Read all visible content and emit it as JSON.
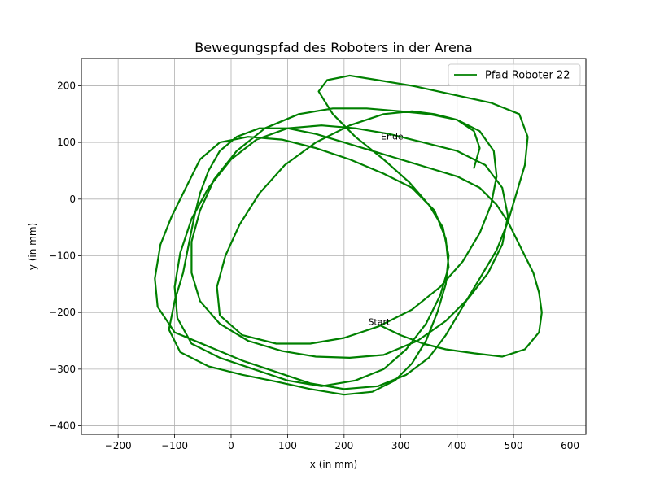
{
  "chart_data": {
    "type": "line",
    "title": "Bewegungspfad des Roboters in der Arena",
    "xlabel": "x (in mm)",
    "ylabel": "y (in mm)",
    "xlim": [
      -265,
      628
    ],
    "ylim": [
      -415,
      248
    ],
    "xticks": [
      -200,
      -100,
      0,
      100,
      200,
      300,
      400,
      500,
      600
    ],
    "yticks": [
      -400,
      -300,
      -200,
      -100,
      0,
      100,
      200
    ],
    "grid": true,
    "legend_position": "top-right",
    "series": [
      {
        "name": "Pfad Roboter 22",
        "color": "#008000",
        "points": [
          [
            262,
            -222
          ],
          [
            300,
            -240
          ],
          [
            340,
            -255
          ],
          [
            380,
            -265
          ],
          [
            430,
            -272
          ],
          [
            480,
            -278
          ],
          [
            520,
            -265
          ],
          [
            545,
            -235
          ],
          [
            550,
            -200
          ],
          [
            545,
            -165
          ],
          [
            535,
            -130
          ],
          [
            520,
            -100
          ],
          [
            505,
            -70
          ],
          [
            490,
            -40
          ],
          [
            470,
            -10
          ],
          [
            440,
            20
          ],
          [
            400,
            40
          ],
          [
            350,
            55
          ],
          [
            300,
            70
          ],
          [
            250,
            85
          ],
          [
            200,
            100
          ],
          [
            150,
            115
          ],
          [
            100,
            125
          ],
          [
            50,
            125
          ],
          [
            10,
            110
          ],
          [
            -20,
            85
          ],
          [
            -40,
            50
          ],
          [
            -55,
            10
          ],
          [
            -65,
            -30
          ],
          [
            -75,
            -80
          ],
          [
            -85,
            -130
          ],
          [
            -100,
            -180
          ],
          [
            -110,
            -230
          ],
          [
            -90,
            -270
          ],
          [
            -40,
            -295
          ],
          [
            20,
            -310
          ],
          [
            80,
            -322
          ],
          [
            140,
            -335
          ],
          [
            200,
            -345
          ],
          [
            250,
            -340
          ],
          [
            290,
            -320
          ],
          [
            320,
            -290
          ],
          [
            345,
            -250
          ],
          [
            365,
            -200
          ],
          [
            380,
            -150
          ],
          [
            385,
            -100
          ],
          [
            375,
            -50
          ],
          [
            350,
            -10
          ],
          [
            315,
            30
          ],
          [
            270,
            70
          ],
          [
            220,
            110
          ],
          [
            180,
            150
          ],
          [
            155,
            190
          ],
          [
            170,
            210
          ],
          [
            210,
            218
          ],
          [
            260,
            210
          ],
          [
            320,
            200
          ],
          [
            390,
            185
          ],
          [
            460,
            170
          ],
          [
            510,
            150
          ],
          [
            525,
            110
          ],
          [
            520,
            60
          ],
          [
            505,
            10
          ],
          [
            490,
            -40
          ],
          [
            470,
            -90
          ],
          [
            440,
            -140
          ],
          [
            410,
            -190
          ],
          [
            380,
            -240
          ],
          [
            350,
            -280
          ],
          [
            310,
            -310
          ],
          [
            260,
            -330
          ],
          [
            200,
            -335
          ],
          [
            140,
            -325
          ],
          [
            80,
            -305
          ],
          [
            20,
            -285
          ],
          [
            -40,
            -260
          ],
          [
            -100,
            -235
          ],
          [
            -130,
            -190
          ],
          [
            -135,
            -140
          ],
          [
            -125,
            -80
          ],
          [
            -105,
            -30
          ],
          [
            -80,
            20
          ],
          [
            -55,
            70
          ],
          [
            -20,
            100
          ],
          [
            30,
            110
          ],
          [
            90,
            105
          ],
          [
            150,
            90
          ],
          [
            210,
            70
          ],
          [
            270,
            45
          ],
          [
            320,
            20
          ],
          [
            360,
            -20
          ],
          [
            380,
            -70
          ],
          [
            385,
            -120
          ],
          [
            370,
            -170
          ],
          [
            345,
            -220
          ],
          [
            310,
            -265
          ],
          [
            270,
            -300
          ],
          [
            220,
            -320
          ],
          [
            160,
            -330
          ],
          [
            100,
            -320
          ],
          [
            40,
            -300
          ],
          [
            -20,
            -280
          ],
          [
            -70,
            -255
          ],
          [
            -95,
            -210
          ],
          [
            -100,
            -155
          ],
          [
            -90,
            -95
          ],
          [
            -70,
            -35
          ],
          [
            -40,
            20
          ],
          [
            0,
            70
          ],
          [
            45,
            105
          ],
          [
            100,
            125
          ],
          [
            160,
            130
          ],
          [
            220,
            125
          ],
          [
            280,
            115
          ],
          [
            340,
            100
          ],
          [
            400,
            85
          ],
          [
            450,
            60
          ],
          [
            480,
            20
          ],
          [
            490,
            -30
          ],
          [
            480,
            -80
          ],
          [
            455,
            -130
          ],
          [
            420,
            -175
          ],
          [
            380,
            -215
          ],
          [
            330,
            -250
          ],
          [
            270,
            -275
          ],
          [
            210,
            -280
          ],
          [
            150,
            -278
          ],
          [
            90,
            -268
          ],
          [
            30,
            -250
          ],
          [
            -20,
            -220
          ],
          [
            -55,
            -180
          ],
          [
            -70,
            -130
          ],
          [
            -70,
            -75
          ],
          [
            -55,
            -20
          ],
          [
            -30,
            35
          ],
          [
            10,
            85
          ],
          [
            60,
            125
          ],
          [
            120,
            150
          ],
          [
            180,
            160
          ],
          [
            240,
            160
          ],
          [
            300,
            155
          ],
          [
            350,
            150
          ],
          [
            400,
            140
          ],
          [
            440,
            120
          ],
          [
            465,
            85
          ],
          [
            470,
            40
          ],
          [
            460,
            -10
          ],
          [
            440,
            -60
          ],
          [
            410,
            -110
          ],
          [
            370,
            -155
          ],
          [
            320,
            -195
          ],
          [
            260,
            -225
          ],
          [
            200,
            -245
          ],
          [
            140,
            -255
          ],
          [
            80,
            -255
          ],
          [
            20,
            -240
          ],
          [
            -20,
            -205
          ],
          [
            -25,
            -155
          ],
          [
            -10,
            -100
          ],
          [
            15,
            -45
          ],
          [
            50,
            10
          ],
          [
            95,
            60
          ],
          [
            150,
            100
          ],
          [
            210,
            130
          ],
          [
            270,
            150
          ],
          [
            320,
            155
          ],
          [
            360,
            150
          ],
          [
            400,
            140
          ],
          [
            430,
            120
          ],
          [
            440,
            90
          ],
          [
            430,
            55
          ]
        ]
      }
    ],
    "annotations": [
      {
        "text": "Start",
        "x": 262,
        "y": -222
      },
      {
        "text": "Ende",
        "x": 285,
        "y": 105
      }
    ]
  }
}
